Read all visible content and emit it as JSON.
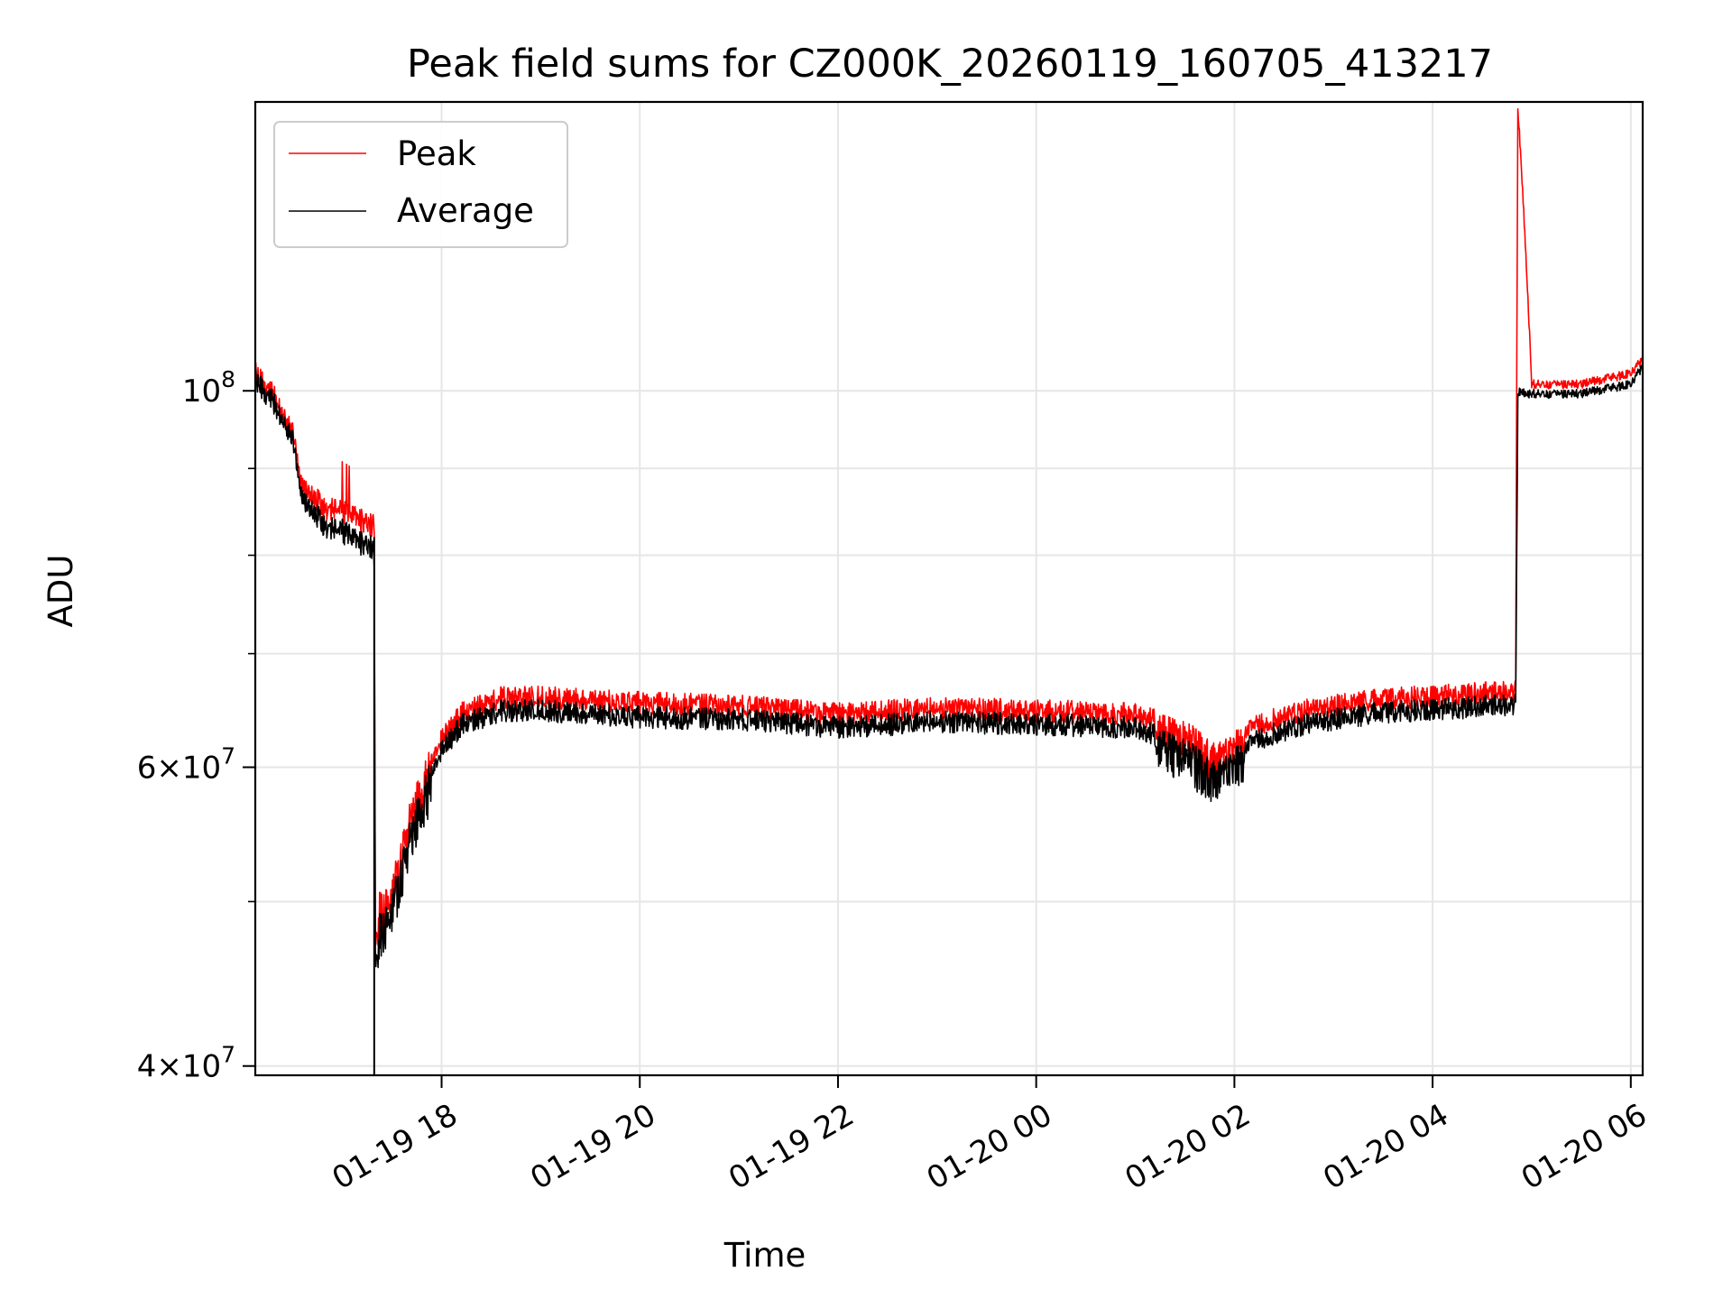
{
  "chart_data": {
    "type": "line",
    "title": "Peak field sums for CZ000K_20260119_160705_413217",
    "xlabel": "Time",
    "ylabel": "ADU",
    "y_scale": "log",
    "x_unit": "hours since 2026-01-19 00:00",
    "xlim": [
      16.12,
      30.12
    ],
    "ylim": [
      39500000,
      148000000
    ],
    "grid": true,
    "legend_position": "upper-left",
    "x_ticks": [
      {
        "value": 18,
        "label": "01-19 18"
      },
      {
        "value": 20,
        "label": "01-19 20"
      },
      {
        "value": 22,
        "label": "01-19 22"
      },
      {
        "value": 0,
        "label": "01-20 00"
      },
      {
        "value": 2,
        "label": "01-20 02"
      },
      {
        "value": 4,
        "label": "01-20 04"
      },
      {
        "value": 6,
        "label": "01-20 06"
      }
    ],
    "y_ticks": [
      {
        "value": 40000000,
        "mantissa": "4",
        "exponent": "7",
        "label": "4×10^7"
      },
      {
        "value": 60000000,
        "mantissa": "6",
        "exponent": "7",
        "label": "6×10^7"
      },
      {
        "value": 100000000,
        "mantissa": "10",
        "exponent": "8",
        "label": "10^8"
      }
    ],
    "series": [
      {
        "name": "Peak",
        "color": "#ff0000",
        "x": [
          16.12,
          16.3,
          16.5,
          16.6,
          16.8,
          17.0,
          17.1,
          17.3,
          17.32,
          17.33,
          17.36,
          17.5,
          17.7,
          17.9,
          18.2,
          18.6,
          19.0,
          20.0,
          21.0,
          22.0,
          23.0,
          24.0,
          25.0,
          25.5,
          25.8,
          26.2,
          26.8,
          27.5,
          28.2,
          28.84,
          28.86,
          29.0,
          29.5,
          30.0,
          30.12
        ],
        "values": [
          104000000,
          101000000,
          96000000,
          89000000,
          87000000,
          86500000,
          85800000,
          85000000,
          86000000,
          50000000,
          50500000,
          52000000,
          58000000,
          62000000,
          65500000,
          67000000,
          67000000,
          66500000,
          66200000,
          65500000,
          66000000,
          65800000,
          65500000,
          64000000,
          62000000,
          64500000,
          66000000,
          66800000,
          67200000,
          67500000,
          148000000,
          101500000,
          101500000,
          103000000,
          105000000
        ]
      },
      {
        "name": "Average",
        "color": "#000000",
        "x": [
          16.12,
          16.3,
          16.5,
          16.6,
          16.8,
          17.0,
          17.1,
          17.3,
          17.32,
          17.33,
          17.36,
          17.5,
          17.7,
          17.9,
          18.2,
          18.6,
          19.0,
          20.0,
          21.0,
          22.0,
          23.0,
          24.0,
          25.0,
          25.5,
          25.8,
          26.2,
          26.8,
          27.5,
          28.2,
          28.84,
          28.86,
          29.0,
          29.5,
          30.0,
          30.12
        ],
        "values": [
          103000000,
          100000000,
          95000000,
          87500000,
          85000000,
          84000000,
          83200000,
          82500000,
          82000000,
          48500000,
          49000000,
          51000000,
          56500000,
          61000000,
          64500000,
          65800000,
          65800000,
          65200000,
          65000000,
          64300000,
          64800000,
          64600000,
          64300000,
          62500000,
          60500000,
          63200000,
          64800000,
          65600000,
          66000000,
          66300000,
          100500000,
          100200000,
          100200000,
          101500000,
          104000000
        ]
      }
    ]
  }
}
